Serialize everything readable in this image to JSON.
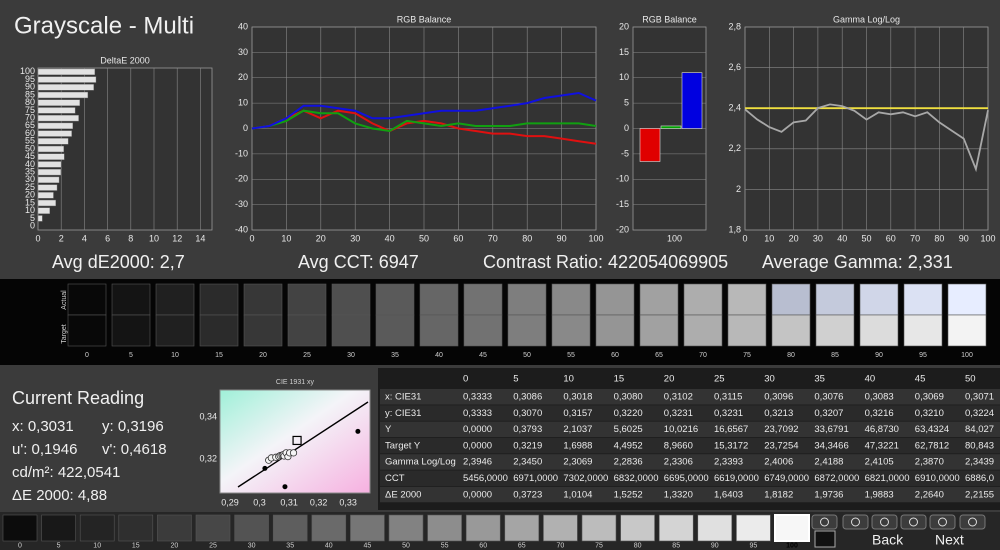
{
  "title": "Grayscale - Multi",
  "delta_e_chart": {
    "type": "bar",
    "title": "DeltaE 2000",
    "categories": [
      100,
      95,
      90,
      85,
      80,
      75,
      70,
      65,
      60,
      55,
      50,
      45,
      40,
      35,
      30,
      25,
      20,
      15,
      10,
      5,
      0
    ],
    "values": [
      4.9,
      5.0,
      4.8,
      4.3,
      3.6,
      3.2,
      3.5,
      3.0,
      2.9,
      2.6,
      2.2155,
      2.264,
      1.9883,
      1.9736,
      1.8182,
      1.6403,
      1.332,
      1.5252,
      1.0104,
      0.3723,
      0
    ],
    "color": "#e2e2e2",
    "xlim": [
      0,
      15
    ],
    "xticks": [
      0,
      2,
      4,
      6,
      8,
      10,
      12,
      14
    ],
    "grid": true
  },
  "rgb_line_chart": {
    "type": "line",
    "title": "RGB Balance",
    "x": [
      0,
      5,
      10,
      15,
      20,
      25,
      30,
      35,
      40,
      45,
      50,
      55,
      60,
      65,
      70,
      75,
      80,
      85,
      90,
      95,
      100
    ],
    "series": [
      {
        "color": "#e01010",
        "values": [
          0,
          1,
          4,
          7,
          4,
          7,
          6,
          2,
          -1,
          2,
          3,
          2,
          0,
          -1,
          -2,
          -2,
          -3,
          -3,
          -4,
          -5,
          -6
        ]
      },
      {
        "color": "#10a010",
        "values": [
          0,
          1,
          3,
          7,
          6,
          6,
          2,
          0,
          -1,
          3,
          2,
          1,
          2,
          1,
          1,
          1,
          2,
          2,
          2,
          2,
          1
        ]
      },
      {
        "color": "#1010e0",
        "values": [
          0,
          1,
          4,
          9,
          9,
          8,
          7,
          4,
          4,
          5,
          6,
          7,
          7,
          7,
          8,
          9,
          10,
          12,
          13,
          14,
          11
        ]
      }
    ],
    "xlim": [
      0,
      100
    ],
    "xticks": [
      0,
      10,
      20,
      30,
      40,
      50,
      60,
      70,
      80,
      90,
      100
    ],
    "ylim": [
      -40,
      40
    ],
    "yticks": [
      -40,
      -30,
      -20,
      -10,
      0,
      10,
      20,
      30,
      40
    ],
    "grid": true
  },
  "rgb_bar_chart": {
    "type": "bar",
    "title": "RGB Balance",
    "values": [
      -6.5,
      0.5,
      11
    ],
    "colors": [
      "#e00000",
      "#00a000",
      "#0000e0"
    ],
    "ylim": [
      -20,
      20
    ],
    "yticks": [
      -20,
      -15,
      -10,
      -5,
      0,
      5,
      10,
      15,
      20
    ],
    "xticks": [
      100
    ],
    "grid": true
  },
  "gamma_chart": {
    "type": "line",
    "title": "Gamma Log/Log",
    "x": [
      0,
      5,
      10,
      15,
      20,
      25,
      30,
      35,
      40,
      45,
      50,
      55,
      60,
      65,
      70,
      75,
      80,
      85,
      90,
      95,
      100
    ],
    "series": [
      {
        "color": "#f0e040",
        "values": [
          2.4,
          2.4,
          2.4,
          2.4,
          2.4,
          2.4,
          2.4,
          2.4,
          2.4,
          2.4,
          2.4,
          2.4,
          2.4,
          2.4,
          2.4,
          2.4,
          2.4,
          2.4,
          2.4,
          2.4,
          2.4
        ]
      },
      {
        "color": "#a8a8a8",
        "values": [
          2.3946,
          2.345,
          2.3069,
          2.2836,
          2.3306,
          2.3393,
          2.4006,
          2.4188,
          2.4105,
          2.387,
          2.3439,
          2.38,
          2.37,
          2.38,
          2.36,
          2.38,
          2.33,
          2.29,
          2.25,
          2.1,
          2.39
        ]
      }
    ],
    "xlim": [
      0,
      100
    ],
    "xticks": [
      0,
      10,
      20,
      30,
      40,
      50,
      60,
      70,
      80,
      90,
      100
    ],
    "ylim": [
      1.8,
      2.8
    ],
    "yticks": [
      {
        "value": 1.8,
        "label": "1,8"
      },
      2,
      {
        "value": 2.2,
        "label": "2,2"
      },
      {
        "value": 2.4,
        "label": "2,4"
      },
      {
        "value": 2.6,
        "label": "2,6"
      },
      {
        "value": 2.8,
        "label": "2,8"
      }
    ],
    "grid": true
  },
  "stats": [
    "Avg dE2000: 2,7",
    "Avg CCT: 6947",
    "Contrast Ratio: 422054069905",
    "Average Gamma: 2,331"
  ],
  "swatches": {
    "actual_label": "Actual",
    "target_label": "Target",
    "levels": [
      0,
      5,
      10,
      15,
      20,
      25,
      30,
      35,
      40,
      45,
      50,
      55,
      60,
      65,
      70,
      75,
      80,
      85,
      90,
      95,
      100
    ]
  },
  "current_reading": {
    "title": "Current Reading",
    "x": "x: 0,3031",
    "y": "y: 0,3196",
    "u": "u': 0,1946",
    "v": "v': 0,4618",
    "luminance": "cd/m²: 422,0541",
    "delta_e": "ΔE 2000: 4,88"
  },
  "cie_chart": {
    "type": "scatter",
    "title": "CIE 1931 xy",
    "xlim": [
      0.2866,
      0.3374
    ],
    "ylim": [
      0.304,
      0.353
    ],
    "xticks": [
      {
        "value": 0.29,
        "label": "0,29"
      },
      {
        "value": 0.3,
        "label": "0,3"
      },
      {
        "value": 0.31,
        "label": "0,31"
      },
      {
        "value": 0.32,
        "label": "0,32"
      },
      {
        "value": 0.33,
        "label": "0,33"
      }
    ],
    "yticks": [
      {
        "value": 0.32,
        "label": "0,32"
      },
      {
        "value": 0.34,
        "label": "0,34"
      }
    ],
    "measured": {
      "x": [
        0.3031,
        0.304,
        0.3055,
        0.3065,
        0.307,
        0.3076,
        0.308,
        0.3083,
        0.309,
        0.3096,
        0.3102,
        0.3115
      ],
      "y": [
        0.3196,
        0.3207,
        0.321,
        0.3213,
        0.3218,
        0.322,
        0.3222,
        0.3216,
        0.3231,
        0.3213,
        0.3231,
        0.3231
      ]
    },
    "reference": {
      "x": [
        0.3333,
        0.3086,
        0.3018
      ],
      "y": [
        0.3333,
        0.307,
        0.3157
      ]
    },
    "target": {
      "x": 0.3127,
      "y": 0.329
    }
  },
  "table": {
    "header": [
      "0",
      "5",
      "10",
      "15",
      "20",
      "25",
      "30",
      "35",
      "40",
      "45",
      "50"
    ],
    "rows": [
      [
        "x: CIE31",
        "0,3333",
        "0,3086",
        "0,3018",
        "0,3080",
        "0,3102",
        "0,3115",
        "0,3096",
        "0,3076",
        "0,3083",
        "0,3069",
        "0,3071"
      ],
      [
        "y: CIE31",
        "0,3333",
        "0,3070",
        "0,3157",
        "0,3220",
        "0,3231",
        "0,3231",
        "0,3213",
        "0,3207",
        "0,3216",
        "0,3210",
        "0,3224"
      ],
      [
        "Y",
        "0,0000",
        "0,3793",
        "2,1037",
        "5,6025",
        "10,0216",
        "16,6567",
        "23,7092",
        "33,6791",
        "46,8730",
        "63,4324",
        "84,027"
      ],
      [
        "Target Y",
        "0,0000",
        "0,3219",
        "1,6988",
        "4,4952",
        "8,9660",
        "15,3172",
        "23,7254",
        "34,3466",
        "47,3221",
        "62,7812",
        "80,843"
      ],
      [
        "Gamma Log/Log",
        "2,3946",
        "2,3450",
        "2,3069",
        "2,2836",
        "2,3306",
        "2,3393",
        "2,4006",
        "2,4188",
        "2,4105",
        "2,3870",
        "2,3439"
      ],
      [
        "CCT",
        "5456,0000",
        "6971,0000",
        "7302,0000",
        "6832,0000",
        "6695,0000",
        "6619,0000",
        "6749,0000",
        "6872,0000",
        "6821,0000",
        "6910,0000",
        "6886,0"
      ],
      [
        "ΔE 2000",
        "0,0000",
        "0,3723",
        "1,0104",
        "1,5252",
        "1,3320",
        "1,6403",
        "1,8182",
        "1,9736",
        "1,9883",
        "2,2640",
        "2,2155"
      ]
    ]
  },
  "toolbar": {
    "levels": [
      0,
      5,
      10,
      15,
      20,
      25,
      30,
      35,
      40,
      45,
      50,
      55,
      60,
      65,
      70,
      75,
      80,
      85,
      90,
      95,
      100
    ],
    "back": "Back",
    "next": "Next"
  }
}
